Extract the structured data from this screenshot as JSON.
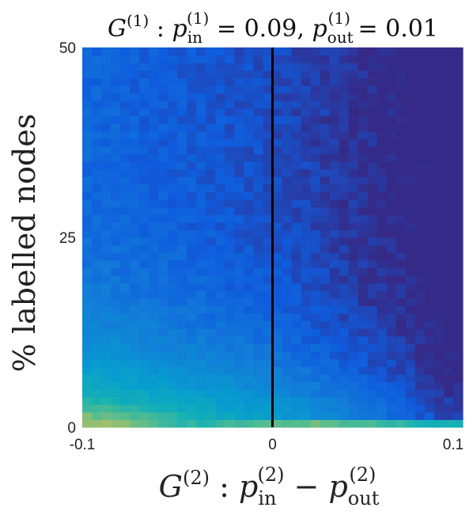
{
  "chart_data": {
    "type": "heatmap",
    "colormap": "parula",
    "title": {
      "graph": "G",
      "graph_sup": "(1)",
      "sep": " : ",
      "p1": "p",
      "p1_sub": "in",
      "p1_sup": "(1)",
      "p1_val": " = 0.09, ",
      "p2": "p",
      "p2_sub": "out",
      "p2_sup": "(1)",
      "p2_val": " = 0.01"
    },
    "xlabel": {
      "graph": "G",
      "graph_sup": "(2)",
      "sep": " :  ",
      "a": "p",
      "a_sub": "in",
      "a_sup": "(2)",
      "minus": " − ",
      "b": "p",
      "b_sub": "out",
      "b_sup": "(2)"
    },
    "ylabel": "% labelled nodes",
    "x_ticks": [
      "-0.1",
      "0",
      "0.1"
    ],
    "x_tick_values": [
      -0.1,
      0,
      0.1
    ],
    "y_ticks": [
      "0",
      "25",
      "50"
    ],
    "y_tick_values": [
      0,
      25,
      50
    ],
    "xlim": [
      -0.1,
      0.1
    ],
    "ylim": [
      0,
      50
    ],
    "vertical_line_x": 0,
    "grid_cols": 40,
    "grid_rows": 50
  }
}
